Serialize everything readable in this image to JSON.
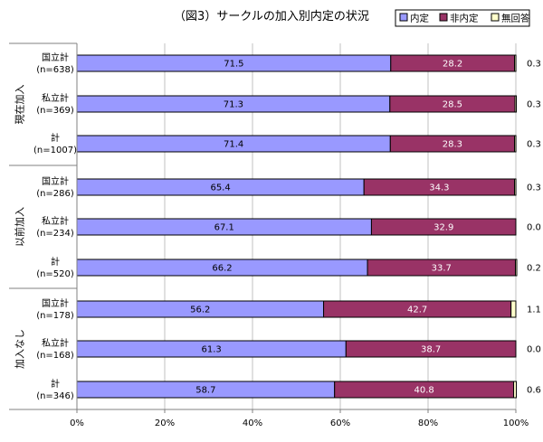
{
  "chart_data": {
    "type": "bar",
    "stacked": true,
    "orientation": "horizontal",
    "title": "（図3）サークルの加入別内定の状況",
    "legend": {
      "position": "top-right",
      "entries": [
        "内定",
        "非内定",
        "無回答"
      ]
    },
    "colors": {
      "内定": "#9999ff",
      "非内定": "#993366",
      "無回答": "#ffffcc"
    },
    "xlim": [
      0,
      100
    ],
    "xticks": [
      "0%",
      "20%",
      "40%",
      "60%",
      "80%",
      "100%"
    ],
    "grid": true,
    "groups": [
      {
        "label": "現在加入",
        "rows": [
          {
            "name": "国立計",
            "n": "(n=638)",
            "values": [
              71.5,
              28.2,
              0.3
            ],
            "labels": [
              "71.5",
              "28.2",
              "0.3"
            ]
          },
          {
            "name": "私立計",
            "n": "(n=369)",
            "values": [
              71.3,
              28.5,
              0.3
            ],
            "labels": [
              "71.3",
              "28.5",
              "0.3"
            ]
          },
          {
            "name": "計",
            "n": "(n=1007)",
            "values": [
              71.4,
              28.3,
              0.3
            ],
            "labels": [
              "71.4",
              "28.3",
              "0.3"
            ]
          }
        ]
      },
      {
        "label": "以前加入",
        "rows": [
          {
            "name": "国立計",
            "n": "(n=286)",
            "values": [
              65.4,
              34.3,
              0.3
            ],
            "labels": [
              "65.4",
              "34.3",
              "0.3"
            ]
          },
          {
            "name": "私立計",
            "n": "(n=234)",
            "values": [
              67.1,
              32.9,
              0.0
            ],
            "labels": [
              "67.1",
              "32.9",
              "0.0"
            ]
          },
          {
            "name": "計",
            "n": "(n=520)",
            "values": [
              66.2,
              33.7,
              0.2
            ],
            "labels": [
              "66.2",
              "33.7",
              "0.2"
            ]
          }
        ]
      },
      {
        "label": "加入なし",
        "rows": [
          {
            "name": "国立計",
            "n": "(n=178)",
            "values": [
              56.2,
              42.7,
              1.1
            ],
            "labels": [
              "56.2",
              "42.7",
              "1.1"
            ]
          },
          {
            "name": "私立計",
            "n": "(n=168)",
            "values": [
              61.3,
              38.7,
              0.0
            ],
            "labels": [
              "61.3",
              "38.7",
              "0.0"
            ]
          },
          {
            "name": "計",
            "n": "(n=346)",
            "values": [
              58.7,
              40.8,
              0.6
            ],
            "labels": [
              "58.7",
              "40.8",
              "0.6"
            ]
          }
        ]
      }
    ]
  }
}
